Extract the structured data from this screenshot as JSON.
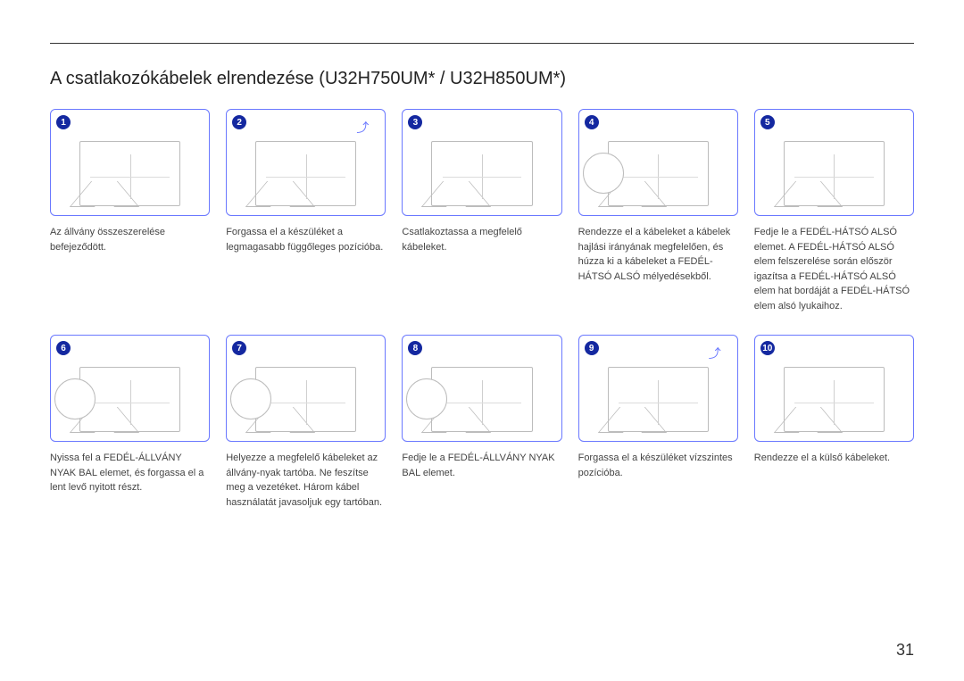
{
  "page": {
    "title": "A csatlakozókábelek elrendezése (U32H750UM* / U32H850UM*)",
    "page_number": "31"
  },
  "accent_color": "#1428a0",
  "box_border_color": "#6a78ff",
  "steps": [
    {
      "n": "1",
      "caption": "Az állvány összeszerelése befejeződött.",
      "callout": false,
      "arrow": false
    },
    {
      "n": "2",
      "caption": "Forgassa el a készüléket a legmagasabb függőleges pozícióba.",
      "callout": false,
      "arrow": true
    },
    {
      "n": "3",
      "caption": "Csatlakoztassa a megfelelő kábeleket.",
      "callout": false,
      "arrow": false
    },
    {
      "n": "4",
      "caption": "Rendezze el a kábeleket a kábelek hajlási irányának megfelelően, és húzza ki a kábeleket a FEDÉL-HÁTSÓ ALSÓ mélyedésekből.",
      "callout": true,
      "arrow": false
    },
    {
      "n": "5",
      "caption": "Fedje le a FEDÉL-HÁTSÓ ALSÓ elemet. A FEDÉL-HÁTSÓ ALSÓ elem felszerelése során először igazítsa a FEDÉL-HÁTSÓ ALSÓ elem hat bordáját a FEDÉL-HÁTSÓ elem alsó lyukaihoz.",
      "callout": false,
      "arrow": false
    },
    {
      "n": "6",
      "caption": "Nyissa fel a FEDÉL-ÁLLVÁNY NYAK BAL elemet, és forgassa el a lent levő nyitott részt.",
      "callout": true,
      "arrow": false
    },
    {
      "n": "7",
      "caption": "Helyezze a megfelelő kábeleket az állvány-nyak tartóba. Ne feszítse meg a vezetéket. Három kábel használatát javasoljuk egy tartóban.",
      "callout": true,
      "arrow": false
    },
    {
      "n": "8",
      "caption": "Fedje le a FEDÉL-ÁLLVÁNY NYAK BAL elemet.",
      "callout": true,
      "arrow": false
    },
    {
      "n": "9",
      "caption": "Forgassa el a készüléket vízszintes pozícióba.",
      "callout": false,
      "arrow": true
    },
    {
      "n": "10",
      "caption": "Rendezze el a külső kábeleket.",
      "callout": false,
      "arrow": false
    }
  ]
}
